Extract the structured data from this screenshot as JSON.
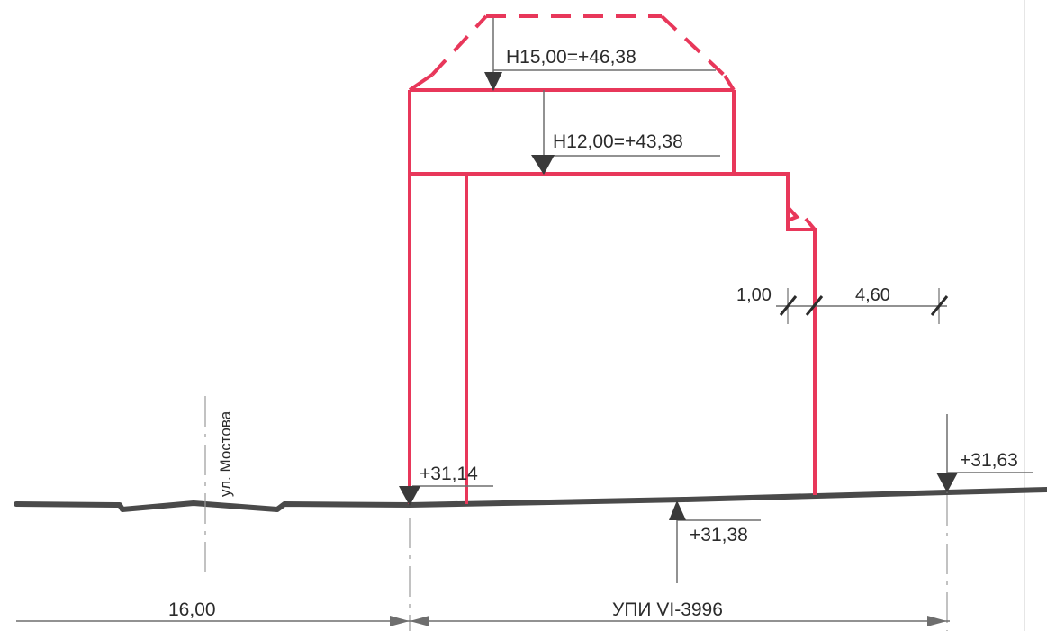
{
  "elevations": {
    "top_dashed": "H15,00=+46,38",
    "middle": "H12,00=+43,38",
    "ground_left": "+31,14",
    "ground_mid": "+31,38",
    "ground_right": "+31,63"
  },
  "dimensions": {
    "setback_small": "1,00",
    "setback_large": "4,60",
    "street_width": "16,00",
    "plot_label": "УПИ VI-3996"
  },
  "street_name": "ул. Мостова",
  "colors": {
    "building": "#e8375a",
    "ground": "#4a4a4a",
    "dimension": "#6e6e6e",
    "text": "#2b2b2b"
  }
}
